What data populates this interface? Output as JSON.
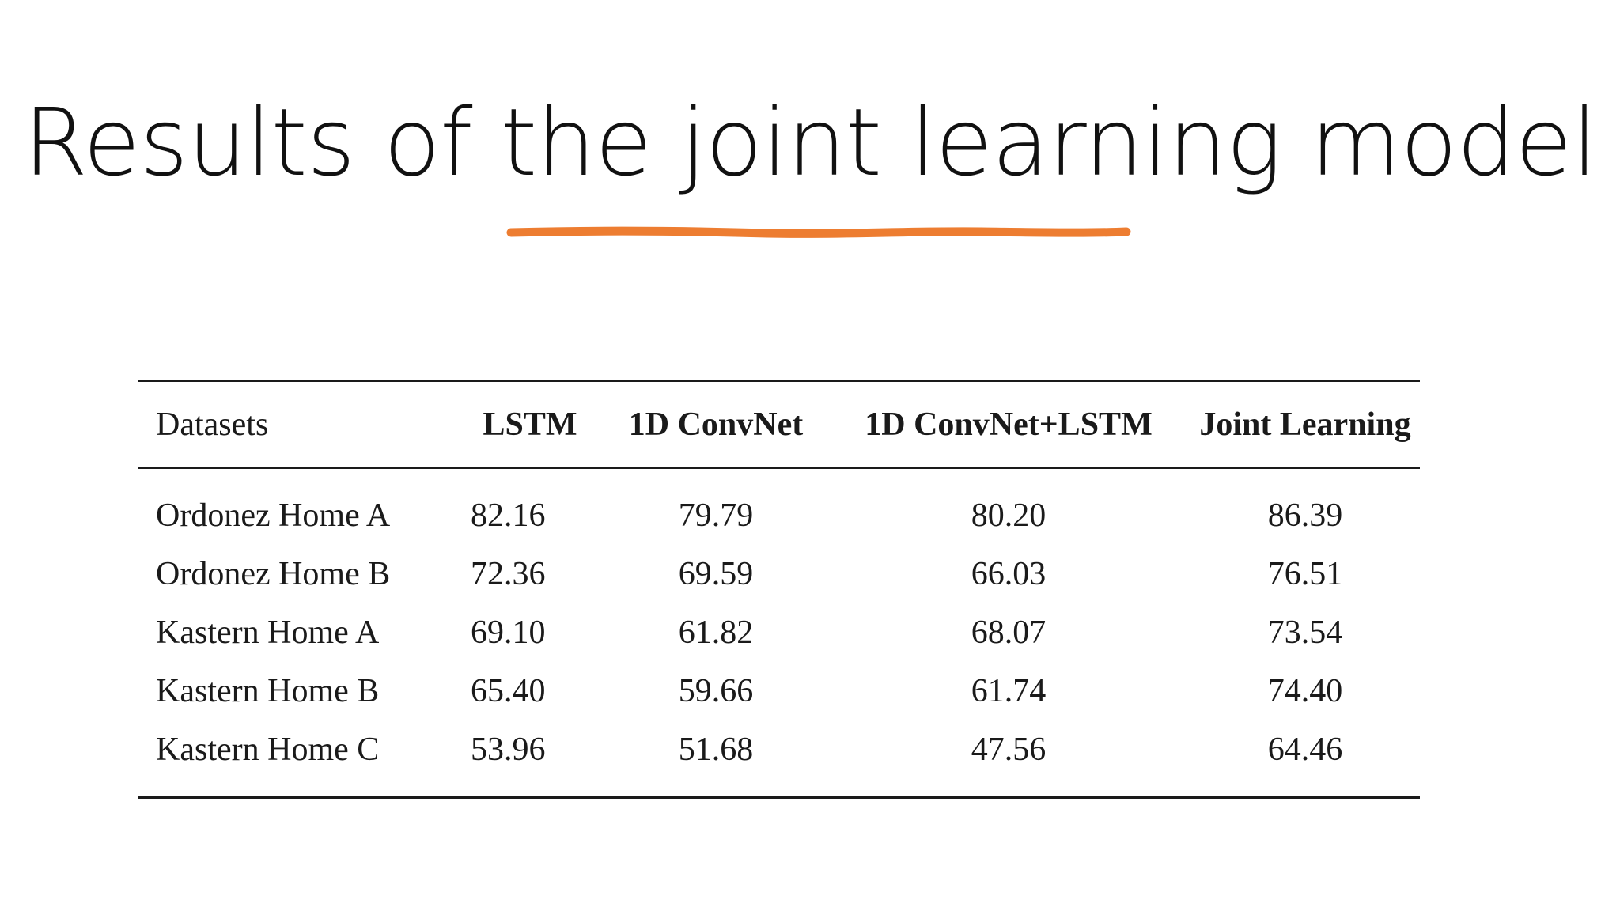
{
  "slide": {
    "title": "Results of the joint learning model",
    "accent_color": "#ED7D31"
  },
  "table": {
    "headers": [
      "Datasets",
      "LSTM",
      "1D ConvNet",
      "1D ConvNet+LSTM",
      "Joint Learning"
    ],
    "rows": [
      [
        "Ordonez Home A",
        "82.16",
        "79.79",
        "80.20",
        "86.39"
      ],
      [
        "Ordonez Home B",
        "72.36",
        "69.59",
        "66.03",
        "76.51"
      ],
      [
        "Kastern Home A",
        "69.10",
        "61.82",
        "68.07",
        "73.54"
      ],
      [
        "Kastern Home B",
        "65.40",
        "59.66",
        "61.74",
        "74.40"
      ],
      [
        "Kastern Home C",
        "53.96",
        "51.68",
        "47.56",
        "64.46"
      ]
    ]
  }
}
